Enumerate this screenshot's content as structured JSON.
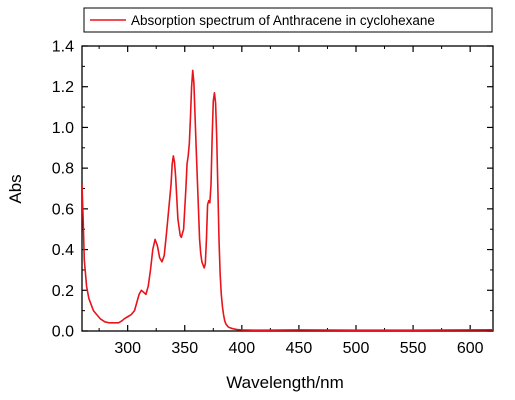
{
  "chart_data": {
    "type": "line",
    "xlabel": "Wavelength/nm",
    "ylabel": "Abs",
    "xlim": [
      260,
      620
    ],
    "ylim": [
      0,
      1.4
    ],
    "x_ticks": [
      300,
      350,
      400,
      450,
      500,
      550,
      600
    ],
    "x_tick_labels": [
      "300",
      "350",
      "400",
      "450",
      "500",
      "550",
      "600"
    ],
    "y_ticks": [
      0,
      0.2,
      0.4,
      0.6,
      0.8,
      1.0,
      1.2,
      1.4
    ],
    "y_tick_labels": [
      "0.0",
      "0.2",
      "0.4",
      "0.6",
      "0.8",
      "1.0",
      "1.2",
      "1.4"
    ],
    "grid": false,
    "legend": {
      "position": "top-right"
    },
    "series": [
      {
        "name": "Absorption spectrum of Anthracene in cyclohexane",
        "color": "#e8141b",
        "x": [
          260,
          261,
          262,
          264,
          266,
          268,
          270,
          273,
          276,
          280,
          284,
          288,
          292,
          295,
          297,
          300,
          303,
          306,
          308,
          310,
          312,
          314,
          316,
          318,
          320,
          322,
          324,
          326,
          328,
          330,
          332,
          334,
          336,
          338,
          339,
          340,
          341,
          342,
          344,
          346,
          347,
          349,
          351,
          352,
          353,
          354,
          355,
          356,
          357,
          358,
          360,
          362,
          363,
          364,
          365,
          367,
          368,
          369,
          370,
          371,
          372,
          373,
          374,
          375,
          376,
          377,
          378,
          379,
          380,
          381,
          382,
          383,
          384,
          385,
          386,
          388,
          390,
          393,
          396,
          400,
          410,
          420,
          450,
          500,
          550,
          600,
          620
        ],
        "y": [
          0.72,
          0.55,
          0.35,
          0.22,
          0.16,
          0.13,
          0.1,
          0.08,
          0.06,
          0.045,
          0.04,
          0.04,
          0.04,
          0.05,
          0.06,
          0.07,
          0.08,
          0.1,
          0.14,
          0.18,
          0.2,
          0.19,
          0.18,
          0.22,
          0.3,
          0.4,
          0.45,
          0.42,
          0.36,
          0.34,
          0.37,
          0.48,
          0.6,
          0.72,
          0.82,
          0.86,
          0.83,
          0.76,
          0.55,
          0.47,
          0.46,
          0.5,
          0.7,
          0.82,
          0.86,
          0.92,
          1.05,
          1.2,
          1.28,
          1.22,
          0.9,
          0.6,
          0.45,
          0.38,
          0.34,
          0.31,
          0.33,
          0.45,
          0.62,
          0.64,
          0.63,
          0.72,
          0.95,
          1.13,
          1.17,
          1.12,
          0.95,
          0.7,
          0.45,
          0.28,
          0.18,
          0.12,
          0.08,
          0.05,
          0.035,
          0.02,
          0.015,
          0.01,
          0.007,
          0.005,
          0.004,
          0.004,
          0.005,
          0.004,
          0.004,
          0.005,
          0.006
        ]
      }
    ]
  }
}
